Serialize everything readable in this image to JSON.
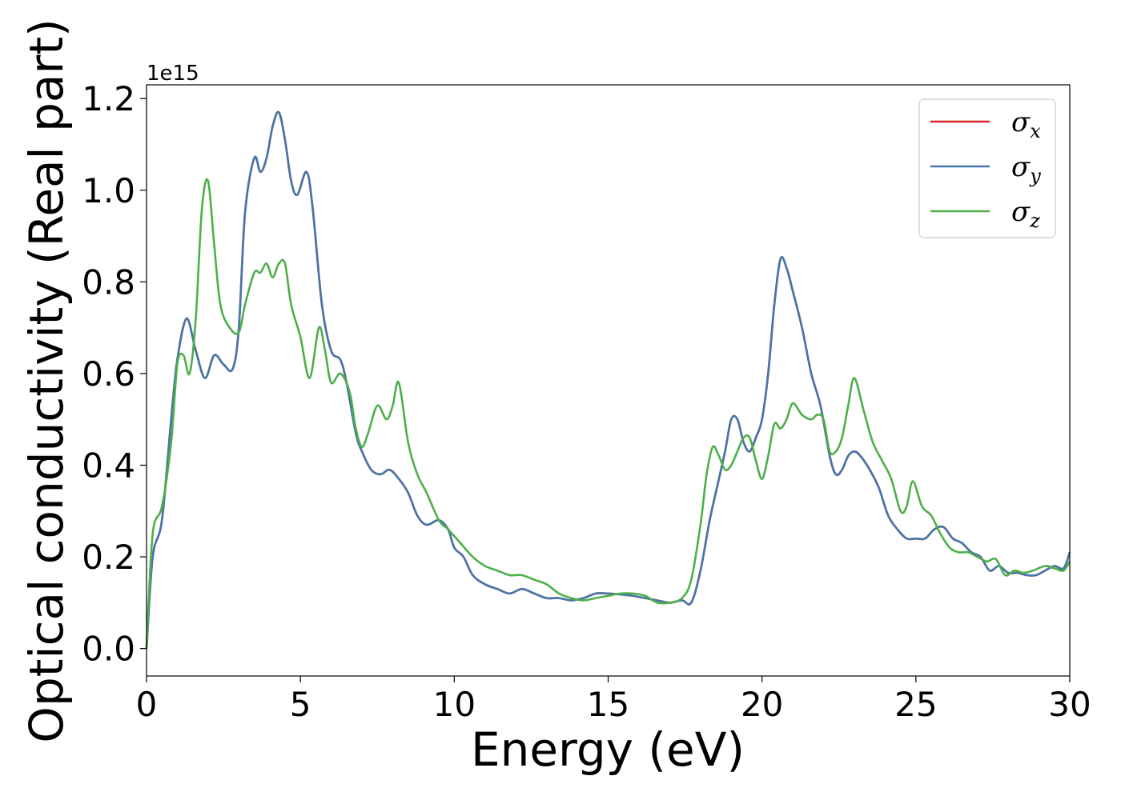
{
  "chart_data": {
    "type": "line",
    "title": "",
    "xlabel": "Energy (eV)",
    "ylabel": "Optical conductivity (Real part)",
    "y_offset_text": "1e15",
    "xlim": [
      0,
      30
    ],
    "ylim": [
      -0.06,
      1.23
    ],
    "x_ticks": [
      0,
      5,
      10,
      15,
      20,
      25,
      30
    ],
    "y_ticks": [
      0.0,
      0.2,
      0.4,
      0.6,
      0.8,
      1.0,
      1.2
    ],
    "grid": false,
    "legend_position": "top-right",
    "series": [
      {
        "name": "σx",
        "label_main": "σ",
        "label_sub": "x",
        "color": "#d62728",
        "x": [
          0,
          0.2,
          0.5,
          0.8,
          1.0,
          1.3,
          1.6,
          1.9,
          2.2,
          2.5,
          2.8,
          3.0,
          3.2,
          3.5,
          3.7,
          3.9,
          4.1,
          4.3,
          4.5,
          4.7,
          4.9,
          5.2,
          5.4,
          5.7,
          6.0,
          6.3,
          6.5,
          6.8,
          7.0,
          7.3,
          7.6,
          7.9,
          8.2,
          8.5,
          8.8,
          9.1,
          9.5,
          9.8,
          10.0,
          10.3,
          10.6,
          11.0,
          11.4,
          11.8,
          12.2,
          12.6,
          13.0,
          13.4,
          13.8,
          14.2,
          14.6,
          15.0,
          15.4,
          15.8,
          16.2,
          16.6,
          17.0,
          17.4,
          17.7,
          18.0,
          18.3,
          18.6,
          18.8,
          19.0,
          19.2,
          19.4,
          19.6,
          19.8,
          20.0,
          20.2,
          20.4,
          20.6,
          20.8,
          21.0,
          21.3,
          21.6,
          21.9,
          22.2,
          22.4,
          22.6,
          22.8,
          23.0,
          23.2,
          23.5,
          23.8,
          24.1,
          24.4,
          24.7,
          25.0,
          25.3,
          25.6,
          25.9,
          26.2,
          26.5,
          26.8,
          27.1,
          27.4,
          27.7,
          28.0,
          28.3,
          28.6,
          28.9,
          29.2,
          29.5,
          29.8,
          30.0
        ],
        "y": [
          0.0,
          0.2,
          0.28,
          0.5,
          0.63,
          0.72,
          0.65,
          0.59,
          0.64,
          0.62,
          0.61,
          0.7,
          0.95,
          1.07,
          1.04,
          1.07,
          1.14,
          1.17,
          1.11,
          1.02,
          0.99,
          1.04,
          0.96,
          0.75,
          0.65,
          0.63,
          0.58,
          0.47,
          0.43,
          0.39,
          0.38,
          0.39,
          0.37,
          0.34,
          0.29,
          0.27,
          0.28,
          0.26,
          0.22,
          0.2,
          0.16,
          0.14,
          0.13,
          0.12,
          0.13,
          0.12,
          0.11,
          0.11,
          0.105,
          0.11,
          0.12,
          0.12,
          0.118,
          0.115,
          0.11,
          0.105,
          0.1,
          0.105,
          0.1,
          0.17,
          0.28,
          0.37,
          0.43,
          0.5,
          0.5,
          0.45,
          0.43,
          0.46,
          0.5,
          0.6,
          0.75,
          0.85,
          0.83,
          0.78,
          0.7,
          0.6,
          0.53,
          0.42,
          0.38,
          0.39,
          0.42,
          0.43,
          0.42,
          0.39,
          0.35,
          0.29,
          0.26,
          0.24,
          0.24,
          0.24,
          0.26,
          0.265,
          0.24,
          0.23,
          0.21,
          0.2,
          0.17,
          0.18,
          0.165,
          0.165,
          0.16,
          0.16,
          0.17,
          0.18,
          0.175,
          0.21
        ]
      },
      {
        "name": "σy",
        "label_main": "σ",
        "label_sub": "y",
        "color": "#4477aa",
        "x": [
          0,
          0.2,
          0.5,
          0.8,
          1.0,
          1.3,
          1.6,
          1.9,
          2.2,
          2.5,
          2.8,
          3.0,
          3.2,
          3.5,
          3.7,
          3.9,
          4.1,
          4.3,
          4.5,
          4.7,
          4.9,
          5.2,
          5.4,
          5.7,
          6.0,
          6.3,
          6.5,
          6.8,
          7.0,
          7.3,
          7.6,
          7.9,
          8.2,
          8.5,
          8.8,
          9.1,
          9.5,
          9.8,
          10.0,
          10.3,
          10.6,
          11.0,
          11.4,
          11.8,
          12.2,
          12.6,
          13.0,
          13.4,
          13.8,
          14.2,
          14.6,
          15.0,
          15.4,
          15.8,
          16.2,
          16.6,
          17.0,
          17.4,
          17.7,
          18.0,
          18.3,
          18.6,
          18.8,
          19.0,
          19.2,
          19.4,
          19.6,
          19.8,
          20.0,
          20.2,
          20.4,
          20.6,
          20.8,
          21.0,
          21.3,
          21.6,
          21.9,
          22.2,
          22.4,
          22.6,
          22.8,
          23.0,
          23.2,
          23.5,
          23.8,
          24.1,
          24.4,
          24.7,
          25.0,
          25.3,
          25.6,
          25.9,
          26.2,
          26.5,
          26.8,
          27.1,
          27.4,
          27.7,
          28.0,
          28.3,
          28.6,
          28.9,
          29.2,
          29.5,
          29.8,
          30.0
        ],
        "y": [
          0.0,
          0.2,
          0.28,
          0.5,
          0.63,
          0.72,
          0.65,
          0.59,
          0.64,
          0.62,
          0.61,
          0.7,
          0.95,
          1.07,
          1.04,
          1.07,
          1.14,
          1.17,
          1.11,
          1.02,
          0.99,
          1.04,
          0.96,
          0.75,
          0.65,
          0.63,
          0.58,
          0.47,
          0.43,
          0.39,
          0.38,
          0.39,
          0.37,
          0.34,
          0.29,
          0.27,
          0.28,
          0.26,
          0.22,
          0.2,
          0.16,
          0.14,
          0.13,
          0.12,
          0.13,
          0.12,
          0.11,
          0.11,
          0.105,
          0.11,
          0.12,
          0.12,
          0.118,
          0.115,
          0.11,
          0.105,
          0.1,
          0.105,
          0.1,
          0.17,
          0.28,
          0.37,
          0.43,
          0.5,
          0.5,
          0.45,
          0.43,
          0.46,
          0.5,
          0.6,
          0.75,
          0.85,
          0.83,
          0.78,
          0.7,
          0.6,
          0.53,
          0.42,
          0.38,
          0.39,
          0.42,
          0.43,
          0.42,
          0.39,
          0.35,
          0.29,
          0.26,
          0.24,
          0.24,
          0.24,
          0.26,
          0.265,
          0.24,
          0.23,
          0.21,
          0.2,
          0.17,
          0.18,
          0.165,
          0.165,
          0.16,
          0.16,
          0.17,
          0.18,
          0.175,
          0.21
        ]
      },
      {
        "name": "σz",
        "label_main": "σ",
        "label_sub": "z",
        "color": "#4daf4a",
        "x": [
          0,
          0.2,
          0.5,
          0.8,
          1.0,
          1.2,
          1.4,
          1.6,
          1.8,
          2.0,
          2.2,
          2.4,
          2.7,
          3.0,
          3.2,
          3.5,
          3.7,
          3.9,
          4.1,
          4.3,
          4.5,
          4.7,
          5.0,
          5.3,
          5.6,
          5.8,
          6.0,
          6.3,
          6.6,
          6.8,
          7.0,
          7.2,
          7.5,
          7.8,
          8.0,
          8.2,
          8.5,
          8.8,
          9.1,
          9.5,
          9.8,
          10.2,
          10.6,
          11.0,
          11.4,
          11.8,
          12.2,
          12.6,
          13.0,
          13.4,
          13.8,
          14.2,
          14.6,
          15.0,
          15.4,
          15.8,
          16.2,
          16.6,
          17.0,
          17.4,
          17.7,
          18.0,
          18.2,
          18.4,
          18.6,
          18.8,
          19.0,
          19.2,
          19.4,
          19.6,
          19.8,
          20.0,
          20.2,
          20.4,
          20.6,
          20.8,
          21.0,
          21.3,
          21.6,
          21.8,
          22.0,
          22.2,
          22.4,
          22.6,
          22.8,
          23.0,
          23.3,
          23.6,
          23.9,
          24.2,
          24.5,
          24.7,
          24.9,
          25.2,
          25.5,
          25.8,
          26.1,
          26.4,
          26.7,
          27.0,
          27.3,
          27.6,
          27.9,
          28.2,
          28.5,
          28.8,
          29.2,
          29.5,
          29.8,
          30.0
        ],
        "y": [
          0.0,
          0.25,
          0.31,
          0.45,
          0.62,
          0.64,
          0.6,
          0.72,
          0.96,
          1.02,
          0.88,
          0.75,
          0.7,
          0.69,
          0.75,
          0.82,
          0.82,
          0.84,
          0.81,
          0.84,
          0.84,
          0.75,
          0.68,
          0.59,
          0.7,
          0.65,
          0.58,
          0.6,
          0.56,
          0.48,
          0.44,
          0.47,
          0.53,
          0.5,
          0.53,
          0.58,
          0.45,
          0.38,
          0.34,
          0.28,
          0.26,
          0.23,
          0.2,
          0.18,
          0.17,
          0.16,
          0.16,
          0.15,
          0.14,
          0.12,
          0.11,
          0.105,
          0.11,
          0.115,
          0.12,
          0.12,
          0.115,
          0.1,
          0.1,
          0.11,
          0.15,
          0.27,
          0.38,
          0.44,
          0.42,
          0.39,
          0.4,
          0.43,
          0.46,
          0.46,
          0.41,
          0.37,
          0.42,
          0.49,
          0.48,
          0.5,
          0.535,
          0.51,
          0.5,
          0.51,
          0.5,
          0.43,
          0.43,
          0.46,
          0.53,
          0.59,
          0.52,
          0.45,
          0.41,
          0.37,
          0.3,
          0.31,
          0.365,
          0.31,
          0.29,
          0.25,
          0.22,
          0.21,
          0.21,
          0.2,
          0.19,
          0.195,
          0.16,
          0.17,
          0.165,
          0.17,
          0.18,
          0.175,
          0.17,
          0.19
        ]
      }
    ]
  }
}
